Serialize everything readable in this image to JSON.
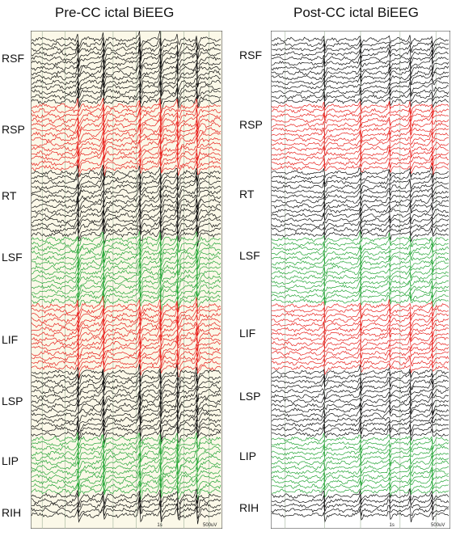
{
  "panels": [
    {
      "title": "Pre-CC ictal BiEEG",
      "scale_label": "500uV",
      "time_label": "1s",
      "background": "#fbf8e8",
      "groups": [
        {
          "label": "RSF",
          "color": "#111111",
          "channels": 14
        },
        {
          "label": "RSP",
          "color": "#e8231f",
          "channels": 14
        },
        {
          "label": "RT",
          "color": "#111111",
          "channels": 14
        },
        {
          "label": "LSF",
          "color": "#27a638",
          "channels": 14
        },
        {
          "label": "LIF",
          "color": "#e8231f",
          "channels": 14
        },
        {
          "label": "LSP",
          "color": "#111111",
          "channels": 14
        },
        {
          "label": "LIP",
          "color": "#27a638",
          "channels": 12
        },
        {
          "label": "RIH",
          "color": "#111111",
          "channels": 5
        }
      ]
    },
    {
      "title": "Post-CC ictal BiEEG",
      "scale_label": "500uV",
      "time_label": "1s",
      "background": "#ffffff",
      "groups": [
        {
          "label": "RSF",
          "color": "#111111",
          "channels": 14
        },
        {
          "label": "RSP",
          "color": "#e8231f",
          "channels": 14
        },
        {
          "label": "RT",
          "color": "#111111",
          "channels": 14
        },
        {
          "label": "LSF",
          "color": "#27a638",
          "channels": 14
        },
        {
          "label": "LIF",
          "color": "#e8231f",
          "channels": 14
        },
        {
          "label": "LSP",
          "color": "#111111",
          "channels": 14
        },
        {
          "label": "LIP",
          "color": "#27a638",
          "channels": 12
        },
        {
          "label": "RIH",
          "color": "#111111",
          "channels": 5
        }
      ]
    }
  ]
}
